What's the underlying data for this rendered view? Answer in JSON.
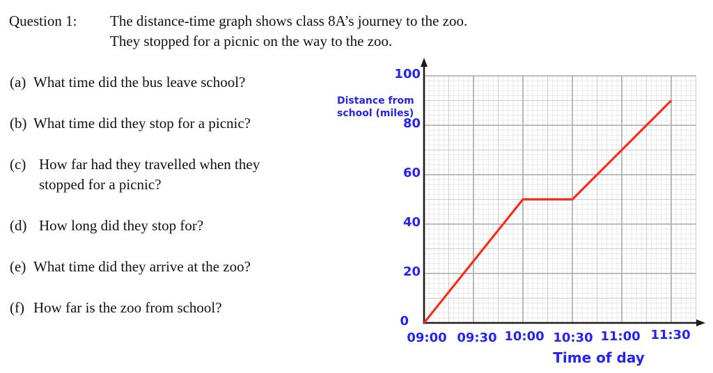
{
  "header": {
    "label": "Question 1:",
    "line1": "The distance-time graph shows class 8A’s journey to the zoo.",
    "line2": "They stopped for a picnic on the way to the zoo."
  },
  "questions": [
    {
      "marker": "(a)",
      "text": "What time did the bus leave school?"
    },
    {
      "marker": "(b)",
      "text": "What time did they stop for a picnic?"
    },
    {
      "marker": "(c)",
      "line1": "How far had they travelled when they",
      "line2": "stopped for a picnic?"
    },
    {
      "marker": "(d)",
      "text": "How long did they stop for?"
    },
    {
      "marker": "(e)",
      "text": "What time did they arrive at the zoo?"
    },
    {
      "marker": "(f)",
      "text": "How far is the zoo from school?"
    }
  ],
  "chart_data": {
    "type": "line",
    "title": "",
    "xlabel": "Time of day",
    "ylabel": "Distance from school (miles)",
    "ylabel_lines": [
      "Distance from",
      "school (miles)"
    ],
    "x_ticks": [
      "09:00",
      "09:30",
      "10:00",
      "10:30",
      "11:00",
      "11:30"
    ],
    "y_ticks": [
      0,
      20,
      40,
      60,
      80,
      100
    ],
    "ylim": [
      0,
      100
    ],
    "x_range_minutes_after_0900": [
      0,
      165
    ],
    "grid": true,
    "legend": false,
    "series": [
      {
        "name": "class 8A journey",
        "points": [
          {
            "x": "09:00",
            "y": 0
          },
          {
            "x": "10:00",
            "y": 50
          },
          {
            "x": "10:30",
            "y": 50
          },
          {
            "x": "11:30",
            "y": 90
          }
        ]
      }
    ]
  },
  "colors": {
    "accent_blue": "#2424f0",
    "line_red": "#f82c17",
    "grid_fine": "#e8e8e8",
    "grid_medium": "#d2d2d2",
    "grid_major": "#a8a8a8",
    "axis": "#1c1c1c",
    "text": "#111111"
  }
}
